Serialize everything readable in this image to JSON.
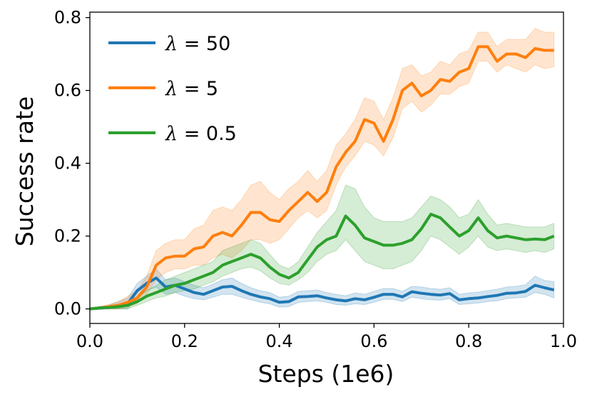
{
  "chart_data": {
    "type": "line",
    "title": "",
    "xlabel": "Steps (1e6)",
    "ylabel": "Success rate",
    "xlim": [
      0.0,
      1.0
    ],
    "ylim": [
      -0.04,
      0.815
    ],
    "xticks": [
      0.0,
      0.2,
      0.4,
      0.6,
      0.8,
      1.0
    ],
    "yticks": [
      0.0,
      0.2,
      0.4,
      0.6,
      0.8
    ],
    "xtick_labels": [
      "0.0",
      "0.2",
      "0.4",
      "0.6",
      "0.8",
      "1.0"
    ],
    "ytick_labels": [
      "0.0",
      "0.2",
      "0.4",
      "0.6",
      "0.8"
    ],
    "grid": false,
    "legend_position": "top-left",
    "x": [
      0.0,
      0.02,
      0.04,
      0.06,
      0.08,
      0.1,
      0.12,
      0.14,
      0.16,
      0.18,
      0.2,
      0.22,
      0.24,
      0.26,
      0.28,
      0.3,
      0.32,
      0.34,
      0.36,
      0.38,
      0.4,
      0.42,
      0.44,
      0.46,
      0.48,
      0.5,
      0.52,
      0.54,
      0.56,
      0.58,
      0.6,
      0.62,
      0.64,
      0.66,
      0.68,
      0.7,
      0.72,
      0.74,
      0.76,
      0.78,
      0.8,
      0.82,
      0.84,
      0.86,
      0.88,
      0.9,
      0.92,
      0.94,
      0.96,
      0.98
    ],
    "series": [
      {
        "name_lambda": "λ",
        "name_value": " = 50",
        "color": "#1f77b4",
        "values": [
          0.0,
          0.002,
          0.004,
          0.008,
          0.015,
          0.05,
          0.07,
          0.085,
          0.06,
          0.065,
          0.055,
          0.045,
          0.04,
          0.05,
          0.06,
          0.062,
          0.05,
          0.04,
          0.033,
          0.028,
          0.018,
          0.02,
          0.033,
          0.034,
          0.036,
          0.03,
          0.025,
          0.022,
          0.028,
          0.025,
          0.032,
          0.04,
          0.04,
          0.033,
          0.047,
          0.043,
          0.04,
          0.038,
          0.042,
          0.025,
          0.028,
          0.03,
          0.034,
          0.037,
          0.043,
          0.044,
          0.048,
          0.065,
          0.058,
          0.052
        ],
        "lower": [
          0.0,
          0.0,
          0.0,
          0.0,
          0.0,
          0.03,
          0.05,
          0.06,
          0.04,
          0.045,
          0.035,
          0.028,
          0.025,
          0.032,
          0.04,
          0.04,
          0.032,
          0.025,
          0.018,
          0.014,
          0.005,
          0.006,
          0.018,
          0.02,
          0.022,
          0.018,
          0.012,
          0.01,
          0.014,
          0.012,
          0.018,
          0.026,
          0.026,
          0.02,
          0.032,
          0.028,
          0.025,
          0.024,
          0.028,
          0.012,
          0.014,
          0.016,
          0.02,
          0.022,
          0.028,
          0.03,
          0.032,
          0.045,
          0.04,
          0.03
        ],
        "upper": [
          0.0,
          0.005,
          0.01,
          0.02,
          0.03,
          0.07,
          0.09,
          0.11,
          0.08,
          0.085,
          0.075,
          0.065,
          0.058,
          0.068,
          0.08,
          0.085,
          0.07,
          0.058,
          0.05,
          0.045,
          0.032,
          0.035,
          0.048,
          0.05,
          0.052,
          0.045,
          0.04,
          0.036,
          0.044,
          0.04,
          0.048,
          0.056,
          0.056,
          0.048,
          0.062,
          0.06,
          0.056,
          0.054,
          0.058,
          0.04,
          0.044,
          0.046,
          0.05,
          0.054,
          0.06,
          0.062,
          0.066,
          0.09,
          0.078,
          0.075
        ]
      },
      {
        "name_lambda": "λ",
        "name_value": " = 5",
        "color": "#ff7f0e",
        "values": [
          0.0,
          0.003,
          0.006,
          0.01,
          0.018,
          0.03,
          0.06,
          0.12,
          0.14,
          0.145,
          0.145,
          0.165,
          0.17,
          0.2,
          0.21,
          0.2,
          0.23,
          0.265,
          0.265,
          0.245,
          0.24,
          0.27,
          0.295,
          0.32,
          0.295,
          0.32,
          0.39,
          0.43,
          0.46,
          0.52,
          0.51,
          0.46,
          0.52,
          0.6,
          0.62,
          0.585,
          0.6,
          0.63,
          0.625,
          0.65,
          0.66,
          0.72,
          0.72,
          0.68,
          0.7,
          0.7,
          0.69,
          0.715,
          0.71,
          0.71
        ],
        "lower": [
          0.0,
          0.0,
          0.0,
          0.0,
          0.005,
          0.015,
          0.04,
          0.08,
          0.1,
          0.11,
          0.11,
          0.12,
          0.12,
          0.14,
          0.15,
          0.14,
          0.16,
          0.19,
          0.19,
          0.18,
          0.19,
          0.22,
          0.25,
          0.27,
          0.25,
          0.27,
          0.34,
          0.39,
          0.42,
          0.46,
          0.45,
          0.42,
          0.47,
          0.55,
          0.57,
          0.54,
          0.56,
          0.59,
          0.59,
          0.61,
          0.62,
          0.68,
          0.68,
          0.65,
          0.67,
          0.66,
          0.65,
          0.67,
          0.66,
          0.665
        ],
        "upper": [
          0.0,
          0.006,
          0.012,
          0.02,
          0.035,
          0.05,
          0.09,
          0.16,
          0.18,
          0.19,
          0.19,
          0.22,
          0.23,
          0.27,
          0.28,
          0.27,
          0.3,
          0.34,
          0.35,
          0.32,
          0.3,
          0.33,
          0.35,
          0.38,
          0.35,
          0.38,
          0.45,
          0.48,
          0.52,
          0.58,
          0.57,
          0.52,
          0.58,
          0.66,
          0.67,
          0.64,
          0.65,
          0.68,
          0.67,
          0.7,
          0.71,
          0.76,
          0.76,
          0.72,
          0.74,
          0.74,
          0.74,
          0.77,
          0.76,
          0.76
        ]
      },
      {
        "name_lambda": "λ",
        "name_value": " = 0.5",
        "color": "#2ca02c",
        "values": [
          0.0,
          0.003,
          0.004,
          0.006,
          0.01,
          0.02,
          0.035,
          0.045,
          0.055,
          0.065,
          0.07,
          0.08,
          0.09,
          0.1,
          0.12,
          0.13,
          0.14,
          0.15,
          0.14,
          0.115,
          0.095,
          0.085,
          0.1,
          0.135,
          0.17,
          0.19,
          0.2,
          0.255,
          0.23,
          0.195,
          0.185,
          0.175,
          0.175,
          0.18,
          0.19,
          0.22,
          0.26,
          0.25,
          0.225,
          0.2,
          0.215,
          0.25,
          0.215,
          0.195,
          0.2,
          0.195,
          0.19,
          0.192,
          0.19,
          0.2
        ],
        "lower": [
          0.0,
          0.0,
          0.0,
          0.0,
          0.0,
          0.01,
          0.02,
          0.03,
          0.035,
          0.045,
          0.05,
          0.055,
          0.065,
          0.075,
          0.09,
          0.1,
          0.11,
          0.115,
          0.105,
          0.085,
          0.07,
          0.065,
          0.08,
          0.1,
          0.13,
          0.15,
          0.16,
          0.19,
          0.16,
          0.13,
          0.12,
          0.11,
          0.11,
          0.12,
          0.13,
          0.16,
          0.2,
          0.19,
          0.17,
          0.15,
          0.17,
          0.2,
          0.17,
          0.16,
          0.165,
          0.16,
          0.155,
          0.16,
          0.155,
          0.165
        ],
        "upper": [
          0.0,
          0.005,
          0.008,
          0.012,
          0.02,
          0.03,
          0.05,
          0.065,
          0.08,
          0.09,
          0.1,
          0.11,
          0.12,
          0.13,
          0.16,
          0.17,
          0.18,
          0.19,
          0.18,
          0.15,
          0.12,
          0.11,
          0.13,
          0.17,
          0.21,
          0.24,
          0.27,
          0.34,
          0.33,
          0.28,
          0.25,
          0.24,
          0.24,
          0.24,
          0.25,
          0.28,
          0.31,
          0.3,
          0.28,
          0.25,
          0.26,
          0.3,
          0.26,
          0.23,
          0.235,
          0.23,
          0.225,
          0.225,
          0.225,
          0.235
        ]
      }
    ]
  }
}
